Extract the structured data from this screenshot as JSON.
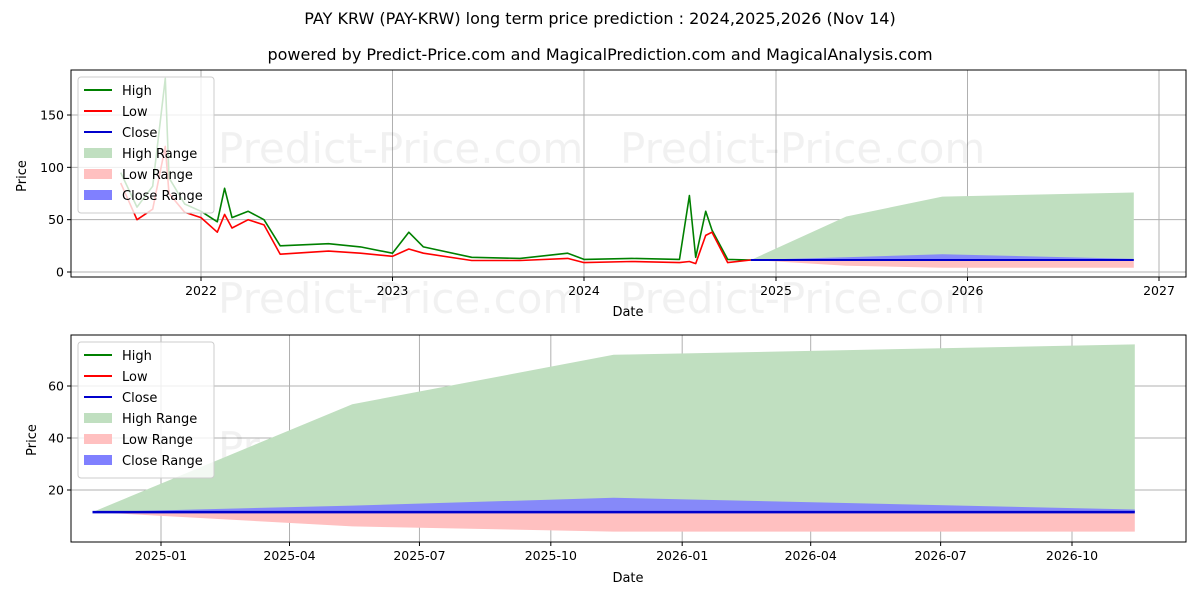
{
  "title": "PAY KRW (PAY-KRW) long term price prediction : 2024,2025,2026 (Nov 14)",
  "subtitle": "powered by Predict-Price.com and MagicalPrediction.com and MagicalAnalysis.com",
  "watermark": "Predict-Price.com",
  "colors": {
    "high": "#008000",
    "low": "#ff0000",
    "close": "#0000cc",
    "high_range": "#c0dfc0",
    "low_range": "#ffc0c0",
    "close_range": "#8080ff",
    "grid": "#b0b0b0"
  },
  "legend": [
    "High",
    "Low",
    "Close",
    "High Range",
    "Low Range",
    "Close Range"
  ],
  "chart_data": [
    {
      "type": "line",
      "title": "PAY KRW (PAY-KRW) long term price prediction : 2024,2025,2026 (Nov 14)",
      "xlabel": "Date",
      "ylabel": "Price",
      "x_ticks": [
        "2022",
        "2023",
        "2024",
        "2025",
        "2026",
        "2027"
      ],
      "y_ticks": [
        0,
        50,
        100,
        150
      ],
      "ylim": [
        -5,
        193
      ],
      "grid": true,
      "legend_position": "upper left",
      "series": [
        {
          "name": "High",
          "x": [
            "2021-08",
            "2021-09",
            "2021-10",
            "2021-10-25",
            "2021-11",
            "2021-12",
            "2022-01",
            "2022-02",
            "2022-02-15",
            "2022-03",
            "2022-04",
            "2022-05",
            "2022-06",
            "2022-09",
            "2022-11",
            "2023-01",
            "2023-02",
            "2023-03",
            "2023-06",
            "2023-09",
            "2023-12",
            "2024-01",
            "2024-04",
            "2024-07",
            "2024-07-20",
            "2024-08",
            "2024-08-20",
            "2024-09",
            "2024-10",
            "2024-11-14"
          ],
          "values": [
            95,
            62,
            82,
            185,
            90,
            65,
            58,
            48,
            80,
            52,
            58,
            50,
            25,
            27,
            24,
            18,
            38,
            24,
            14,
            13,
            18,
            12,
            13,
            12,
            73,
            14,
            58,
            40,
            12,
            11.5
          ]
        },
        {
          "name": "Low",
          "x": [
            "2021-08",
            "2021-09",
            "2021-10",
            "2021-10-25",
            "2021-11",
            "2021-12",
            "2022-01",
            "2022-02",
            "2022-02-15",
            "2022-03",
            "2022-04",
            "2022-05",
            "2022-06",
            "2022-09",
            "2022-11",
            "2023-01",
            "2023-02",
            "2023-03",
            "2023-06",
            "2023-09",
            "2023-12",
            "2024-01",
            "2024-04",
            "2024-07",
            "2024-07-20",
            "2024-08",
            "2024-08-20",
            "2024-09",
            "2024-10",
            "2024-11-14"
          ],
          "values": [
            85,
            50,
            60,
            120,
            75,
            57,
            52,
            38,
            55,
            42,
            50,
            45,
            17,
            20,
            18,
            15,
            22,
            18,
            11,
            11,
            13,
            9,
            10,
            9,
            10,
            8,
            35,
            38,
            9,
            11.5
          ]
        },
        {
          "name": "Close",
          "x": [
            "2024-11-14",
            "2026-11-14"
          ],
          "values": [
            11.5,
            11.5
          ]
        },
        {
          "name": "High Range",
          "x": [
            "2024-11-14",
            "2025-05-15",
            "2025-11-14",
            "2026-11-14"
          ],
          "values": [
            11.5,
            53,
            72,
            76
          ]
        },
        {
          "name": "Low Range",
          "x": [
            "2024-11-14",
            "2025-05-15",
            "2025-11-14",
            "2026-11-14"
          ],
          "values": [
            11.5,
            6,
            4,
            4
          ]
        },
        {
          "name": "Close Range",
          "x": [
            "2024-11-14",
            "2025-05-15",
            "2025-11-14",
            "2026-11-14"
          ],
          "values": [
            11.5,
            14,
            17,
            12.5
          ]
        }
      ]
    },
    {
      "type": "area",
      "title": "",
      "xlabel": "Date",
      "ylabel": "Price",
      "x_ticks": [
        "2025-01",
        "2025-04",
        "2025-07",
        "2025-10",
        "2026-01",
        "2026-04",
        "2026-07",
        "2026-10"
      ],
      "y_ticks": [
        20,
        40,
        60
      ],
      "ylim": [
        0,
        79
      ],
      "grid": true,
      "legend_position": "upper left",
      "series": [
        {
          "name": "High Range",
          "x": [
            "2024-11-14",
            "2025-05-15",
            "2025-11-14",
            "2026-11-14"
          ],
          "upper": [
            11.5,
            53,
            72,
            76
          ],
          "lower": [
            11.5,
            11.5,
            11.5,
            11.5
          ]
        },
        {
          "name": "Low Range",
          "x": [
            "2024-11-14",
            "2025-05-15",
            "2025-11-14",
            "2026-11-14"
          ],
          "upper": [
            11.5,
            11.5,
            11.5,
            11.5
          ],
          "lower": [
            11.5,
            6,
            4,
            4
          ]
        },
        {
          "name": "Close Range",
          "x": [
            "2024-11-14",
            "2025-05-15",
            "2025-11-14",
            "2026-11-14"
          ],
          "upper": [
            11.5,
            14,
            17,
            12.5
          ],
          "lower": [
            11.5,
            11.5,
            11.5,
            11.5
          ]
        },
        {
          "name": "Close",
          "x": [
            "2024-11-14",
            "2026-11-14"
          ],
          "values": [
            11.5,
            11.5
          ]
        }
      ]
    }
  ]
}
